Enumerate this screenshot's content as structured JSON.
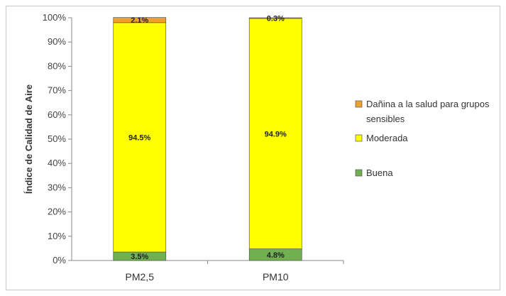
{
  "chart_data": {
    "type": "bar",
    "stacked": true,
    "categories": [
      "PM2,5",
      "PM10"
    ],
    "ylabel": "Índice de Calidad de Aire",
    "xlabel": "",
    "ylim": [
      0,
      100
    ],
    "yticks": [
      "0%",
      "10%",
      "20%",
      "30%",
      "40%",
      "50%",
      "60%",
      "70%",
      "80%",
      "90%",
      "100%"
    ],
    "legend_position": "right",
    "series": [
      {
        "name": "Buena",
        "values": [
          3.5,
          4.8
        ],
        "labels": [
          "3.5%",
          "4.8%"
        ],
        "color": "#70b050"
      },
      {
        "name": "Moderada",
        "values": [
          94.5,
          94.9
        ],
        "labels": [
          "94.5%",
          "94.9%"
        ],
        "color": "#ffff00"
      },
      {
        "name": "Dañina a la salud para grupos sensibles",
        "legend_lines": [
          "Dañina a la salud para grupos",
          "sensibles"
        ],
        "values": [
          2.1,
          0.3
        ],
        "labels": [
          "2.1%",
          "0.3%"
        ],
        "color": "#f0a030"
      }
    ],
    "legend_order": [
      2,
      1,
      0
    ]
  }
}
